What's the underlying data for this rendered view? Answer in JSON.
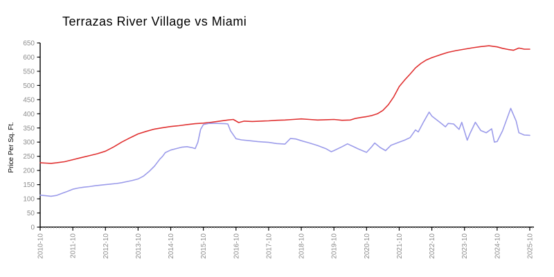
{
  "page": {
    "background": "#ffffff"
  },
  "chart_data": {
    "type": "line",
    "title": "Terrazas River Village vs Miami",
    "ylabel": "Price Per Sq. Ft.",
    "xlabel": "",
    "ylim": [
      0,
      650
    ],
    "ytick_step": 50,
    "ytick_values": [
      0,
      50,
      100,
      150,
      200,
      250,
      300,
      350,
      400,
      450,
      500,
      550,
      600,
      650
    ],
    "xtick_labels": [
      "2010-10",
      "2011-10",
      "2012-10",
      "2013-10",
      "2014-10",
      "2015-10",
      "2016-10",
      "2017-10",
      "2018-10",
      "2019-10",
      "2020-10",
      "2021-10",
      "2022-10",
      "2023-10",
      "2024-10",
      "2025-10"
    ],
    "x_unit": "months since 2010-10",
    "months_per_major_tick": 12,
    "minor_ticks": "monthly",
    "grid": false,
    "legend_position": "none",
    "series": [
      {
        "name": "Miami",
        "color": "#e03030",
        "points": [
          [
            0,
            227
          ],
          [
            2,
            226
          ],
          [
            4,
            225
          ],
          [
            6,
            227
          ],
          [
            9,
            231
          ],
          [
            12,
            238
          ],
          [
            15,
            245
          ],
          [
            18,
            252
          ],
          [
            21,
            259
          ],
          [
            24,
            268
          ],
          [
            27,
            283
          ],
          [
            30,
            300
          ],
          [
            33,
            315
          ],
          [
            36,
            329
          ],
          [
            39,
            338
          ],
          [
            42,
            346
          ],
          [
            45,
            351
          ],
          [
            48,
            355
          ],
          [
            51,
            358
          ],
          [
            54,
            362
          ],
          [
            57,
            365
          ],
          [
            60,
            367
          ],
          [
            63,
            370
          ],
          [
            66,
            374
          ],
          [
            69,
            378
          ],
          [
            71,
            380
          ],
          [
            73,
            369
          ],
          [
            75,
            374
          ],
          [
            78,
            373
          ],
          [
            81,
            374
          ],
          [
            84,
            375
          ],
          [
            87,
            377
          ],
          [
            90,
            378
          ],
          [
            93,
            380
          ],
          [
            96,
            382
          ],
          [
            99,
            380
          ],
          [
            102,
            378
          ],
          [
            105,
            379
          ],
          [
            108,
            380
          ],
          [
            111,
            377
          ],
          [
            114,
            378
          ],
          [
            116,
            384
          ],
          [
            118,
            387
          ],
          [
            120,
            390
          ],
          [
            122,
            394
          ],
          [
            124,
            400
          ],
          [
            126,
            412
          ],
          [
            128,
            432
          ],
          [
            130,
            460
          ],
          [
            132,
            496
          ],
          [
            134,
            519
          ],
          [
            136,
            540
          ],
          [
            138,
            562
          ],
          [
            140,
            578
          ],
          [
            142,
            590
          ],
          [
            144,
            598
          ],
          [
            147,
            608
          ],
          [
            150,
            617
          ],
          [
            153,
            623
          ],
          [
            156,
            628
          ],
          [
            159,
            633
          ],
          [
            162,
            637
          ],
          [
            165,
            640
          ],
          [
            168,
            636
          ],
          [
            170,
            631
          ],
          [
            172,
            627
          ],
          [
            174,
            624
          ],
          [
            176,
            632
          ],
          [
            178,
            628
          ],
          [
            180,
            628
          ]
        ]
      },
      {
        "name": "Terrazas River Village",
        "color": "#9b9bea",
        "points": [
          [
            0,
            113
          ],
          [
            2,
            111
          ],
          [
            4,
            109
          ],
          [
            6,
            112
          ],
          [
            8,
            119
          ],
          [
            10,
            126
          ],
          [
            12,
            134
          ],
          [
            14,
            138
          ],
          [
            16,
            141
          ],
          [
            18,
            143
          ],
          [
            20,
            146
          ],
          [
            22,
            148
          ],
          [
            24,
            150
          ],
          [
            26,
            152
          ],
          [
            28,
            154
          ],
          [
            30,
            157
          ],
          [
            32,
            161
          ],
          [
            34,
            165
          ],
          [
            36,
            170
          ],
          [
            38,
            180
          ],
          [
            40,
            196
          ],
          [
            42,
            215
          ],
          [
            44,
            240
          ],
          [
            45,
            250
          ],
          [
            46,
            263
          ],
          [
            48,
            272
          ],
          [
            50,
            277
          ],
          [
            52,
            282
          ],
          [
            54,
            284
          ],
          [
            56,
            280
          ],
          [
            57,
            277
          ],
          [
            58,
            300
          ],
          [
            59,
            345
          ],
          [
            60,
            362
          ],
          [
            62,
            366
          ],
          [
            65,
            366
          ],
          [
            68,
            365
          ],
          [
            69,
            364
          ],
          [
            70,
            340
          ],
          [
            72,
            312
          ],
          [
            74,
            308
          ],
          [
            77,
            305
          ],
          [
            80,
            302
          ],
          [
            84,
            299
          ],
          [
            87,
            295
          ],
          [
            90,
            293
          ],
          [
            92,
            313
          ],
          [
            94,
            311
          ],
          [
            96,
            305
          ],
          [
            99,
            297
          ],
          [
            102,
            288
          ],
          [
            105,
            277
          ],
          [
            107,
            266
          ],
          [
            108,
            270
          ],
          [
            111,
            284
          ],
          [
            113,
            294
          ],
          [
            115,
            285
          ],
          [
            117,
            276
          ],
          [
            120,
            264
          ],
          [
            122,
            285
          ],
          [
            123,
            297
          ],
          [
            125,
            281
          ],
          [
            127,
            270
          ],
          [
            129,
            289
          ],
          [
            132,
            300
          ],
          [
            134,
            307
          ],
          [
            136,
            316
          ],
          [
            138,
            343
          ],
          [
            139,
            336
          ],
          [
            141,
            372
          ],
          [
            143,
            406
          ],
          [
            144,
            392
          ],
          [
            146,
            377
          ],
          [
            148,
            362
          ],
          [
            149,
            354
          ],
          [
            150,
            366
          ],
          [
            152,
            364
          ],
          [
            154,
            345
          ],
          [
            155,
            370
          ],
          [
            157,
            307
          ],
          [
            158,
            330
          ],
          [
            160,
            370
          ],
          [
            162,
            341
          ],
          [
            164,
            333
          ],
          [
            166,
            347
          ],
          [
            167,
            300
          ],
          [
            168,
            302
          ],
          [
            170,
            340
          ],
          [
            173,
            419
          ],
          [
            175,
            374
          ],
          [
            176,
            333
          ],
          [
            178,
            325
          ],
          [
            180,
            324
          ]
        ]
      }
    ]
  },
  "colors": {
    "axis": "#000000",
    "major_tick": "#000000",
    "minor_tick": "#c2c2c2",
    "tick_labels": "#8c8c8c",
    "title": "#2e2e2e"
  }
}
